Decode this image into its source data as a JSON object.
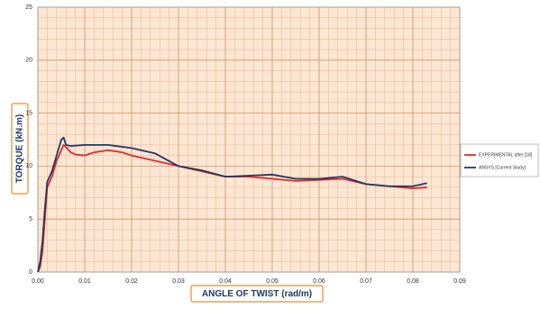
{
  "chart_data": {
    "type": "line",
    "xlabel": "ANGLE OF TWIST (rad/m)",
    "ylabel": "TORQUE (kN.m)",
    "xlim": [
      0,
      0.09
    ],
    "ylim": [
      0,
      25
    ],
    "xticks": [
      {
        "value": 0,
        "label": "0.00"
      },
      0.01,
      0.02,
      0.03,
      0.04,
      0.05,
      0.06,
      0.07,
      0.08,
      0.09
    ],
    "yticks": [
      0,
      5,
      10,
      15,
      20,
      25
    ],
    "grid": true,
    "minor_grid": true,
    "legend": "right",
    "series": [
      {
        "name": "EXPERIMENTAL after [18]",
        "color": "#e8262b",
        "x": [
          0,
          0.0005,
          0.001,
          0.0015,
          0.002,
          0.003,
          0.004,
          0.005,
          0.0055,
          0.006,
          0.007,
          0.008,
          0.01,
          0.012,
          0.015,
          0.018,
          0.02,
          0.025,
          0.03,
          0.035,
          0.04,
          0.045,
          0.05,
          0.055,
          0.06,
          0.065,
          0.07,
          0.075,
          0.08,
          0.083
        ],
        "values": [
          0,
          0.5,
          2,
          5,
          8,
          9,
          10.5,
          11.5,
          12,
          11.8,
          11.3,
          11.1,
          11,
          11.3,
          11.5,
          11.3,
          11,
          10.5,
          10,
          9.5,
          9,
          9,
          8.8,
          8.6,
          8.7,
          8.8,
          8.3,
          8.1,
          7.9,
          8
        ]
      },
      {
        "name": "ANSYS [Current Study]",
        "color": "#1f3864",
        "x": [
          0,
          0.0005,
          0.001,
          0.0015,
          0.002,
          0.003,
          0.004,
          0.005,
          0.0055,
          0.006,
          0.007,
          0.01,
          0.015,
          0.02,
          0.025,
          0.03,
          0.035,
          0.04,
          0.045,
          0.05,
          0.055,
          0.06,
          0.065,
          0.07,
          0.075,
          0.08,
          0.083
        ],
        "values": [
          0,
          1,
          3,
          6,
          8.5,
          9.5,
          11,
          12.5,
          12.7,
          12,
          11.9,
          12,
          12,
          11.7,
          11.2,
          10,
          9.6,
          9,
          9.1,
          9.2,
          8.8,
          8.8,
          9,
          8.3,
          8.1,
          8.1,
          8.4
        ]
      }
    ]
  }
}
